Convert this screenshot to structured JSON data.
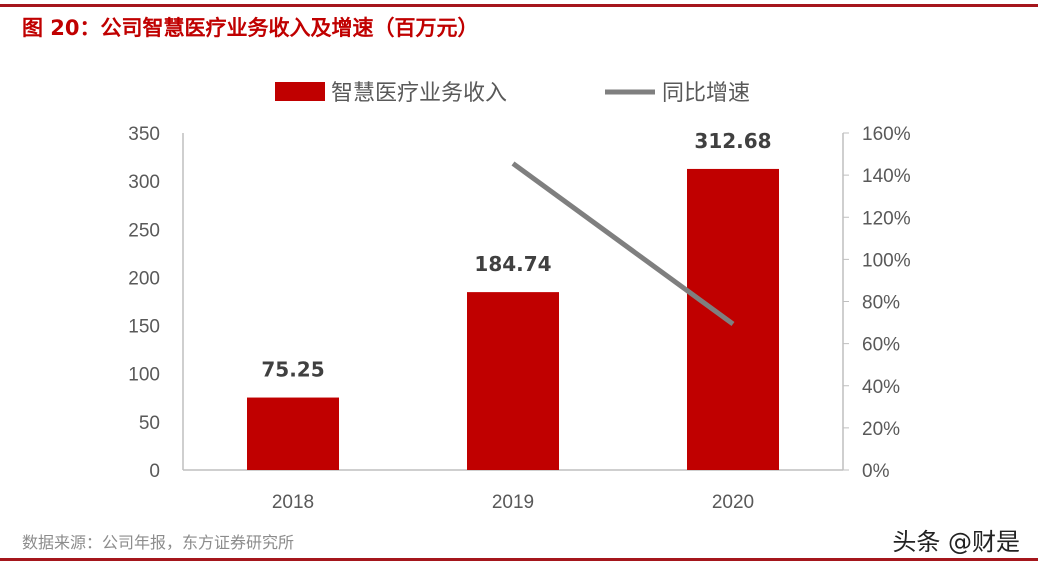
{
  "title": "图 20：公司智慧医疗业务收入及增速（百万元）",
  "source": "数据来源：公司年报，东方证券研究所",
  "watermark": "头条 @财是",
  "chart_data": {
    "type": "bar+line",
    "categories": [
      "2018",
      "2019",
      "2020"
    ],
    "series": [
      {
        "name": "智慧医疗业务收入",
        "type": "bar",
        "axis": "left",
        "values": [
          75.25,
          184.74,
          312.68
        ],
        "data_labels": [
          "75.25",
          "184.74",
          "312.68"
        ],
        "color": "#c00000"
      },
      {
        "name": "同比增速",
        "type": "line",
        "axis": "right",
        "values": [
          null,
          145.5,
          69.3
        ],
        "color": "#7f7f7f"
      }
    ],
    "y_left": {
      "range": [
        0,
        350
      ],
      "ticks": [
        "0",
        "50",
        "100",
        "150",
        "200",
        "250",
        "300",
        "350"
      ]
    },
    "y_right": {
      "range": [
        0,
        160
      ],
      "ticks": [
        "0%",
        "20%",
        "40%",
        "60%",
        "80%",
        "100%",
        "120%",
        "140%",
        "160%"
      ]
    },
    "grid": false,
    "legend": "top"
  }
}
